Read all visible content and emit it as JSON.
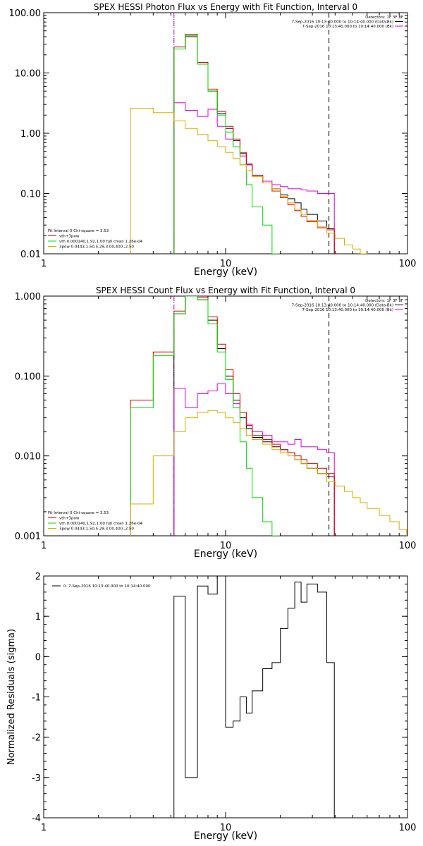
{
  "chart_data": [
    {
      "type": "line",
      "title": "SPEX HESSI Photon Flux vs Energy with Fit Function, Interval 0",
      "xlabel": "Energy (keV)",
      "ylabel": "",
      "xscale": "log",
      "yscale": "log",
      "xlim": [
        1,
        100
      ],
      "ylim": [
        0.01,
        100
      ],
      "xticks": [
        "1",
        "10",
        "100"
      ],
      "yticks": [
        "0.01",
        "0.10",
        "1.00",
        "10.00",
        "100.00"
      ],
      "legend_top": [
        "Detectors: 1F 3F 8F",
        "7-Sep-2016 10:13:40.000 to 10:14:40.000 (Data-Bk)",
        "7-Sep-2016 10:13:40.000 to 10:14:40.000 (Bk)"
      ],
      "legend_bottom": [
        "Fit Interval 0 Chi-square = 3.53",
        "vth+3pow",
        "vth 0.000140,1.92,1.00 full chian 1.26e-04",
        "3pow 0.0443,1.50,5.29,3.00,400.,2.50"
      ],
      "vlines": [
        {
          "x": 5.2,
          "style": "dotted",
          "color": "#000000"
        },
        {
          "x": 5.2,
          "style": "dashed",
          "color": "#dd00dd"
        },
        {
          "x": 37,
          "style": "dashed",
          "color": "#000000"
        }
      ],
      "series": [
        {
          "name": "",
          "color": "#000000",
          "x": [
            3,
            4,
            5.2,
            6,
            7,
            8,
            9,
            10,
            11,
            12,
            13,
            14,
            16,
            18,
            20,
            22,
            24,
            26,
            28,
            32,
            36
          ],
          "y": [
            null,
            null,
            25,
            40,
            14,
            5,
            2.1,
            1.2,
            0.75,
            0.46,
            0.3,
            0.2,
            0.15,
            0.12,
            0.095,
            0.082,
            0.07,
            0.055,
            0.045,
            0.035,
            0.026
          ]
        },
        {
          "name": "",
          "color": "#dd00dd",
          "x": [
            5.2,
            6,
            7,
            8,
            9,
            10,
            11,
            12,
            13,
            14,
            16,
            18,
            20,
            22,
            24,
            26,
            28,
            32,
            36
          ],
          "y": [
            3.2,
            2.4,
            1.9,
            2.5,
            1.3,
            0.8,
            0.6,
            0.42,
            0.3,
            0.2,
            0.16,
            0.14,
            0.13,
            0.12,
            0.12,
            0.115,
            0.11,
            0.1,
            0.1
          ]
        },
        {
          "name": "vth+3pow",
          "color": "#dd0000",
          "x": [
            3,
            4,
            5.2,
            6,
            7,
            8,
            9,
            10,
            11,
            12,
            13,
            14,
            16,
            18,
            20,
            22,
            24,
            26,
            28,
            32,
            36
          ],
          "y": [
            null,
            null,
            27,
            44,
            15,
            5.4,
            2.3,
            1.3,
            0.8,
            0.48,
            0.31,
            0.2,
            0.15,
            0.11,
            0.085,
            0.065,
            0.052,
            0.042,
            0.034,
            0.027,
            0.025
          ]
        },
        {
          "name": "vth 0.000140,1.92,1.00 full chian 1.26e-04",
          "color": "#00dd00",
          "x": [
            3,
            4,
            5.2,
            6,
            7,
            8,
            9,
            10,
            11,
            12,
            13,
            14,
            16,
            18
          ],
          "y": [
            null,
            null,
            25,
            42,
            14,
            5,
            2.0,
            1.05,
            0.6,
            0.3,
            0.14,
            0.06,
            0.03,
            0.01
          ]
        },
        {
          "name": "3pow 0.0443,1.50,5.29,3.00,400.,2.50",
          "color": "#ddaa00",
          "x": [
            3,
            4,
            5.2,
            6,
            7,
            8,
            9,
            10,
            11,
            12,
            13,
            14,
            16,
            18,
            20,
            22,
            24,
            26,
            28,
            32,
            36,
            40,
            45,
            50,
            55,
            60
          ],
          "y": [
            2.6,
            2.2,
            1.6,
            1.2,
            0.95,
            0.75,
            0.6,
            0.48,
            0.38,
            0.3,
            0.24,
            0.19,
            0.15,
            0.12,
            0.09,
            0.07,
            0.055,
            0.045,
            0.036,
            0.028,
            0.022,
            0.018,
            0.014,
            0.012,
            0.01,
            0.008
          ]
        }
      ]
    },
    {
      "type": "line",
      "title": "SPEX HESSI Count Flux vs Energy with Fit Function, Interval 0",
      "xlabel": "Energy (keV)",
      "ylabel": "",
      "xscale": "log",
      "yscale": "log",
      "xlim": [
        1,
        100
      ],
      "ylim": [
        0.001,
        1
      ],
      "xticks": [
        "1",
        "10",
        "100"
      ],
      "yticks": [
        "0.001",
        "0.010",
        "0.100",
        "1.000"
      ],
      "legend_top": [
        "Detectors: 1F 3F 8F",
        "7-Sep-2016 10:13:40.000 to 10:14:40.000 (Data-Bk)",
        "7-Sep-2016 10:13:40.000 to 10:14:40.000 (Bk)"
      ],
      "legend_bottom": [
        "Fit Interval 0 Chi-square = 3.53",
        "vth+3pow",
        "vth 0.000140,1.92,1.00 full chian 1.26e-04",
        "3pow 0.0443,1.50,5.29,3.00,400.,2.50"
      ],
      "vlines": [
        {
          "x": 5.2,
          "style": "dotted",
          "color": "#000000"
        },
        {
          "x": 5.2,
          "style": "dashed",
          "color": "#dd00dd"
        },
        {
          "x": 37,
          "style": "dashed",
          "color": "#000000"
        }
      ],
      "series": [
        {
          "name": "",
          "color": "#000000",
          "x": [
            3,
            4,
            5.2,
            6,
            7,
            8,
            9,
            10,
            11,
            12,
            13,
            14,
            16,
            18,
            20,
            22,
            24,
            26,
            28,
            32,
            36
          ],
          "y": [
            null,
            null,
            0.6,
            1.0,
            0.9,
            0.5,
            0.22,
            0.1,
            0.05,
            0.03,
            0.022,
            0.017,
            0.015,
            0.013,
            0.012,
            0.011,
            0.009,
            0.008,
            0.007,
            0.006,
            0.0055
          ]
        },
        {
          "name": "",
          "color": "#dd00dd",
          "x": [
            5.2,
            6,
            7,
            8,
            9,
            10,
            11,
            12,
            13,
            14,
            16,
            18,
            20,
            22,
            24,
            26,
            28,
            32,
            36
          ],
          "y": [
            0.07,
            0.04,
            0.06,
            0.065,
            0.08,
            0.06,
            0.045,
            0.035,
            0.025,
            0.02,
            0.018,
            0.015,
            0.015,
            0.014,
            0.016,
            0.013,
            0.013,
            0.012,
            0.011
          ]
        },
        {
          "name": "vth+3pow",
          "color": "#dd0000",
          "x": [
            3,
            4,
            5.2,
            6,
            7,
            8,
            9,
            10,
            11,
            12,
            13,
            14,
            16,
            18,
            20,
            22,
            24,
            26,
            28,
            32,
            36
          ],
          "y": [
            0.05,
            0.2,
            0.65,
            1.05,
            0.95,
            0.55,
            0.25,
            0.12,
            0.06,
            0.035,
            0.024,
            0.018,
            0.016,
            0.014,
            0.012,
            0.011,
            0.01,
            0.009,
            0.008,
            0.007,
            0.006
          ]
        },
        {
          "name": "vth 0.000140,1.92,1.00 full chian 1.26e-04",
          "color": "#00dd00",
          "x": [
            3,
            4,
            5.2,
            6,
            7,
            8,
            9,
            10,
            11,
            12,
            13,
            14,
            16,
            18
          ],
          "y": [
            0.04,
            0.18,
            0.6,
            1.0,
            0.9,
            0.45,
            0.2,
            0.09,
            0.04,
            0.015,
            0.007,
            0.003,
            0.0015,
            0.001
          ]
        },
        {
          "name": "3pow 0.0443,1.50,5.29,3.00,400.,2.50",
          "color": "#ddaa00",
          "x": [
            3,
            4,
            5.2,
            6,
            7,
            8,
            9,
            10,
            11,
            12,
            13,
            14,
            16,
            18,
            20,
            22,
            24,
            26,
            28,
            32,
            36,
            40,
            45,
            50,
            55,
            60,
            70,
            80,
            90
          ],
          "y": [
            0.0025,
            0.01,
            0.02,
            0.03,
            0.035,
            0.037,
            0.035,
            0.03,
            0.026,
            0.022,
            0.018,
            0.016,
            0.014,
            0.012,
            0.011,
            0.01,
            0.009,
            0.008,
            0.007,
            0.006,
            0.0048,
            0.0042,
            0.0036,
            0.003,
            0.0026,
            0.0022,
            0.0018,
            0.0015,
            0.0012
          ]
        }
      ]
    },
    {
      "type": "line",
      "title": "",
      "xlabel": "Energy (keV)",
      "ylabel": "Normalized Residuals (sigma)",
      "xscale": "log",
      "yscale": "linear",
      "xlim": [
        1,
        100
      ],
      "ylim": [
        -4,
        2
      ],
      "xticks": [
        "1",
        "10",
        "100"
      ],
      "yticks": [
        "-4",
        "-3",
        "-2",
        "-1",
        "0",
        "1",
        "2"
      ],
      "legend": [
        "0. 7-Sep-2016 10:13:40.000 to 10:14:40.000"
      ],
      "series": [
        {
          "name": "0. 7-Sep-2016 10:13:40.000 to 10:14:40.000",
          "color": "#000000",
          "x": [
            5.2,
            6,
            7,
            8,
            9,
            10,
            11,
            12,
            13,
            14,
            16,
            18,
            20,
            22,
            24,
            26,
            28,
            32,
            36
          ],
          "y": [
            1.5,
            -3.0,
            1.75,
            1.55,
            2.0,
            -1.75,
            -1.6,
            -1.0,
            -1.4,
            -0.85,
            -0.3,
            -0.15,
            0.7,
            1.2,
            1.85,
            1.35,
            1.8,
            1.6,
            -0.15
          ]
        }
      ]
    }
  ]
}
